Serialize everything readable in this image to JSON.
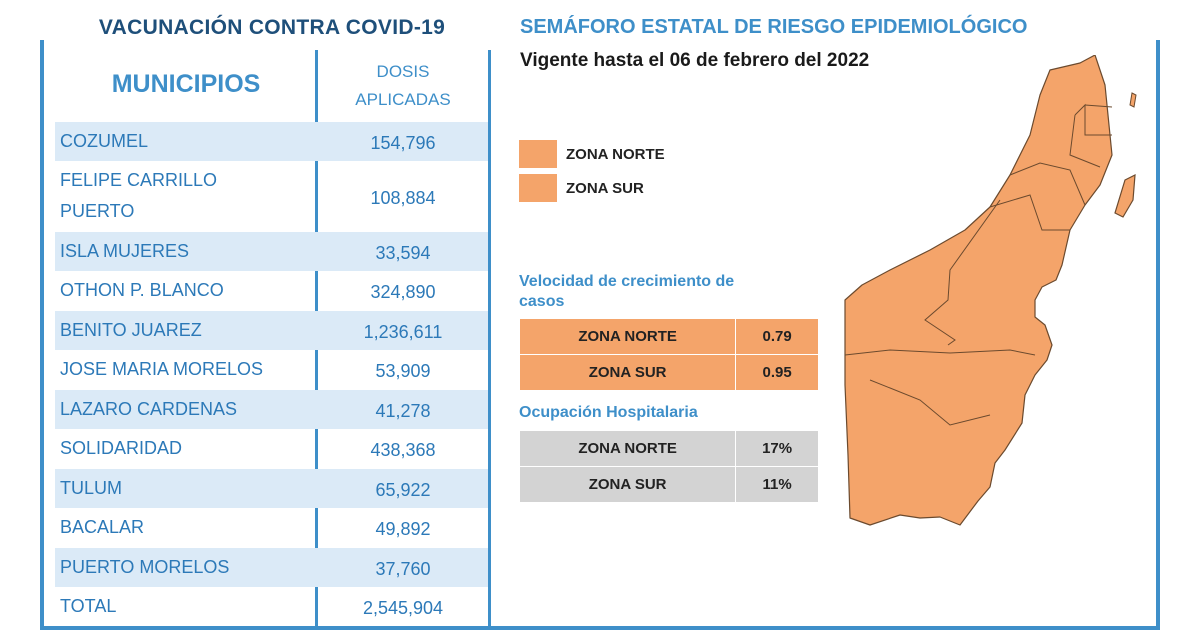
{
  "vaccination": {
    "title": "VACUNACIÓN CONTRA COVID-19",
    "col_municipios": "MUNICIPIOS",
    "col_dosis_line1": "DOSIS",
    "col_dosis_line2": "APLICADAS",
    "rows": [
      {
        "name_line1": "COZUMEL",
        "name_line2": "",
        "value": "154,796"
      },
      {
        "name_line1": "FELIPE CARRILLO",
        "name_line2": "PUERTO",
        "value": "108,884"
      },
      {
        "name_line1": "ISLA MUJERES",
        "name_line2": "",
        "value": "33,594"
      },
      {
        "name_line1": "OTHON P. BLANCO",
        "name_line2": "",
        "value": "324,890"
      },
      {
        "name_line1": "BENITO JUAREZ",
        "name_line2": "",
        "value": "1,236,611"
      },
      {
        "name_line1": "JOSE MARIA MORELOS",
        "name_line2": "",
        "value": "53,909"
      },
      {
        "name_line1": "LAZARO CARDENAS",
        "name_line2": "",
        "value": "41,278"
      },
      {
        "name_line1": "SOLIDARIDAD",
        "name_line2": "",
        "value": "438,368"
      },
      {
        "name_line1": "TULUM",
        "name_line2": "",
        "value": "65,922"
      },
      {
        "name_line1": "BACALAR",
        "name_line2": "",
        "value": "49,892"
      },
      {
        "name_line1": "PUERTO MORELOS",
        "name_line2": "",
        "value": "37,760"
      },
      {
        "name_line1": "TOTAL",
        "name_line2": "",
        "value": "2,545,904"
      }
    ]
  },
  "semaforo": {
    "title": "SEMÁFORO ESTATAL DE RIESGO EPIDEMIOLÓGICO",
    "vigente": "Vigente hasta el 06 de febrero del 2022",
    "legend": [
      {
        "label": "ZONA NORTE",
        "color": "#f4a46a"
      },
      {
        "label": "ZONA SUR",
        "color": "#f4a46a"
      }
    ],
    "velocidad": {
      "title_line1": "Velocidad de crecimiento de",
      "title_line2": "casos",
      "rows": [
        {
          "zone": "ZONA NORTE",
          "value": "0.79"
        },
        {
          "zone": "ZONA SUR",
          "value": "0.95"
        }
      ]
    },
    "ocupacion": {
      "title": "Ocupación Hospitalaria",
      "rows": [
        {
          "zone": "ZONA NORTE",
          "value": "17%"
        },
        {
          "zone": "ZONA SUR",
          "value": "11%"
        }
      ]
    },
    "map_color": "#f4a46a",
    "map_icon": "quintana-roo-map"
  },
  "colors": {
    "accent": "#3e8fc9",
    "title_dark": "#1e4f7a",
    "row_shade": "#dbeaf7",
    "orange": "#f4a46a",
    "gray": "#d3d3d3"
  }
}
